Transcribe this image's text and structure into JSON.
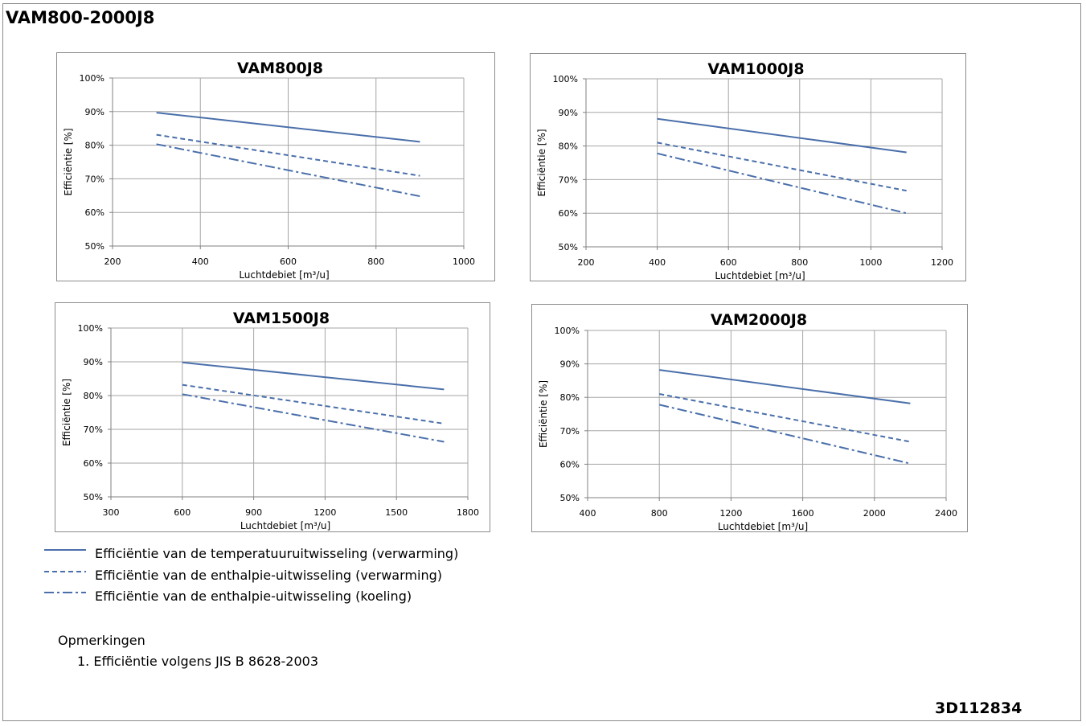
{
  "page_title": "VAM800-2000J8",
  "doc_code": "3D112834",
  "colors": {
    "line": "#4a6faa",
    "grid": "#a6a6a6",
    "axis": "#808080"
  },
  "legend": [
    {
      "label": "Efficiëntie van de temperatuuruitwisseling (verwarming)",
      "style": "solid"
    },
    {
      "label": "Efficiëntie van de enthalpie-uitwisseling (verwarming)",
      "style": "dashed"
    },
    {
      "label": "Efficiëntie van de enthalpie-uitwisseling (koeling)",
      "style": "dashdot"
    }
  ],
  "notes": {
    "title": "Opmerkingen",
    "items": [
      "1.  Efficiëntie volgens JIS B 8628-2003"
    ]
  },
  "chart_data": [
    {
      "type": "line",
      "title": "VAM800J8",
      "xlabel": "Luchtdebiet [m³/u]",
      "ylabel": "Efficiëntie [%]",
      "xlim": [
        200,
        1000
      ],
      "ylim": [
        50,
        100
      ],
      "x_ticks": [
        "200",
        "400",
        "600",
        "800",
        "1000"
      ],
      "y_ticks": [
        "50%",
        "60%",
        "70%",
        "80%",
        "90%",
        "100%"
      ],
      "series": [
        {
          "name": "Efficiëntie van de temperatuuruitwisseling (verwarming)",
          "style": "solid",
          "x": [
            300,
            900
          ],
          "y": [
            89.7,
            81.0
          ]
        },
        {
          "name": "Efficiëntie van de enthalpie-uitwisseling (verwarming)",
          "style": "dashed",
          "x": [
            300,
            900
          ],
          "y": [
            83.1,
            70.9
          ]
        },
        {
          "name": "Efficiëntie van de enthalpie-uitwisseling (koeling)",
          "style": "dashdot",
          "x": [
            300,
            900
          ],
          "y": [
            80.3,
            64.8
          ]
        }
      ]
    },
    {
      "type": "line",
      "title": "VAM1000J8",
      "xlabel": "Luchtdebiet [m³/u]",
      "ylabel": "Efficiëntie [%]",
      "xlim": [
        200,
        1200
      ],
      "ylim": [
        50,
        100
      ],
      "x_ticks": [
        "200",
        "400",
        "600",
        "800",
        "1000",
        "1200"
      ],
      "y_ticks": [
        "50%",
        "60%",
        "70%",
        "80%",
        "90%",
        "100%"
      ],
      "series": [
        {
          "name": "Efficiëntie van de temperatuuruitwisseling (verwarming)",
          "style": "solid",
          "x": [
            400,
            1100
          ],
          "y": [
            88.1,
            78.1
          ]
        },
        {
          "name": "Efficiëntie van de enthalpie-uitwisseling (verwarming)",
          "style": "dashed",
          "x": [
            400,
            1100
          ],
          "y": [
            81.0,
            66.7
          ]
        },
        {
          "name": "Efficiëntie van de enthalpie-uitwisseling (koeling)",
          "style": "dashdot",
          "x": [
            400,
            1100
          ],
          "y": [
            77.8,
            60.0
          ]
        }
      ]
    },
    {
      "type": "line",
      "title": "VAM1500J8",
      "xlabel": "Luchtdebiet [m³/u]",
      "ylabel": "Efficiëntie [%]",
      "xlim": [
        300,
        1800
      ],
      "ylim": [
        50,
        100
      ],
      "x_ticks": [
        "300",
        "600",
        "900",
        "1200",
        "1500",
        "1800"
      ],
      "y_ticks": [
        "50%",
        "60%",
        "70%",
        "80%",
        "90%",
        "100%"
      ],
      "series": [
        {
          "name": "Efficiëntie van de temperatuuruitwisseling (verwarming)",
          "style": "solid",
          "x": [
            600,
            1700
          ],
          "y": [
            89.8,
            81.8
          ]
        },
        {
          "name": "Efficiëntie van de enthalpie-uitwisseling (verwarming)",
          "style": "dashed",
          "x": [
            600,
            1700
          ],
          "y": [
            83.2,
            71.7
          ]
        },
        {
          "name": "Efficiëntie van de enthalpie-uitwisseling (koeling)",
          "style": "dashdot",
          "x": [
            600,
            1700
          ],
          "y": [
            80.4,
            66.3
          ]
        }
      ]
    },
    {
      "type": "line",
      "title": "VAM2000J8",
      "xlabel": "Luchtdebiet [m³/u]",
      "ylabel": "Efficiëntie [%]",
      "xlim": [
        400,
        2400
      ],
      "ylim": [
        50,
        100
      ],
      "x_ticks": [
        "400",
        "800",
        "1200",
        "1600",
        "2000",
        "2400"
      ],
      "y_ticks": [
        "50%",
        "60%",
        "70%",
        "80%",
        "90%",
        "100%"
      ],
      "series": [
        {
          "name": "Efficiëntie van de temperatuuruitwisseling (verwarming)",
          "style": "solid",
          "x": [
            800,
            2200
          ],
          "y": [
            88.2,
            78.2
          ]
        },
        {
          "name": "Efficiëntie van de enthalpie-uitwisseling (verwarming)",
          "style": "dashed",
          "x": [
            800,
            2200
          ],
          "y": [
            81.0,
            66.7
          ]
        },
        {
          "name": "Efficiëntie van de enthalpie-uitwisseling (koeling)",
          "style": "dashdot",
          "x": [
            800,
            2200
          ],
          "y": [
            77.8,
            60.2
          ]
        }
      ]
    }
  ]
}
